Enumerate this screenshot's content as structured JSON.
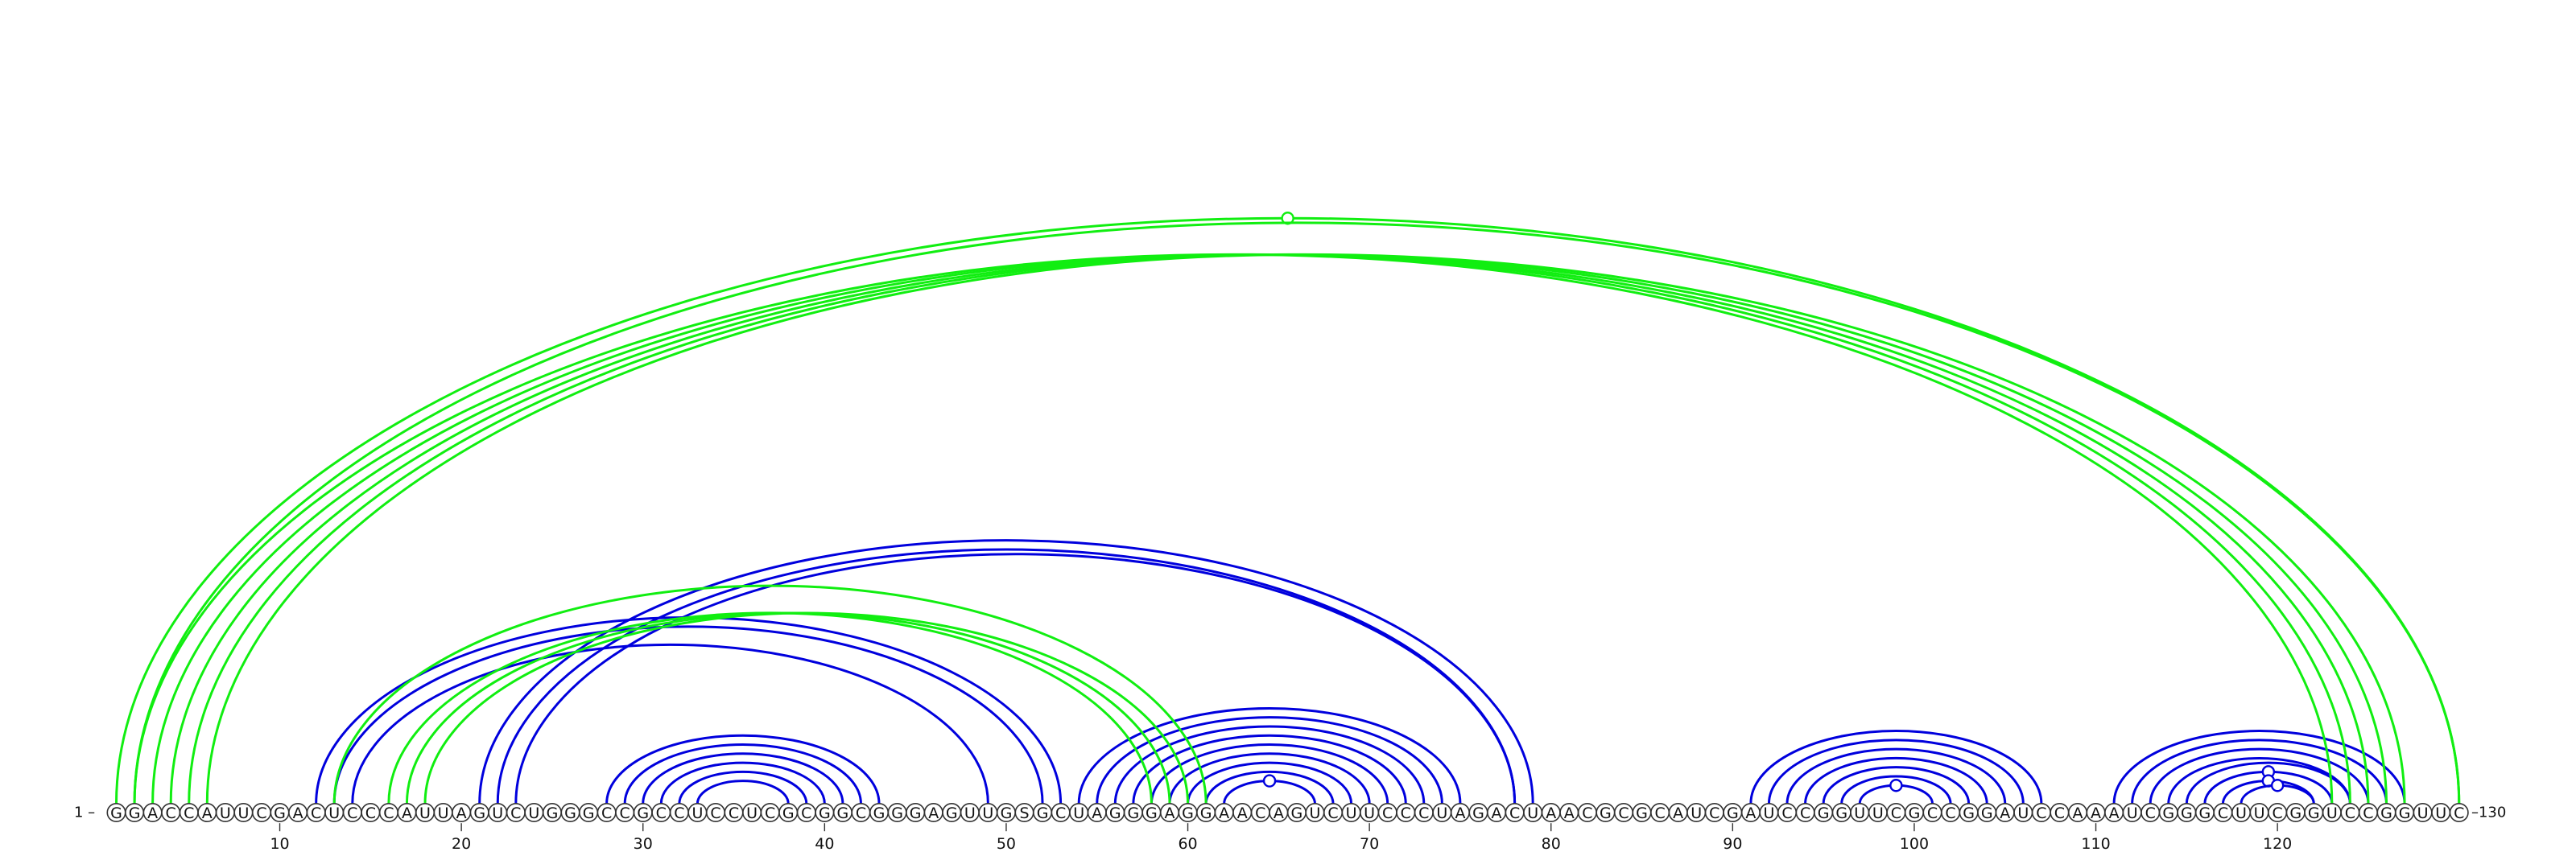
{
  "diagram": {
    "sequence": "GGACCAUUCGACUCCCAUUAGUCUGGGCCGCCUCCUCGCGGCGGGAGUUGSGCUAGGGAGGAACAGUCUUCCCUAGACUAACGCGCAUCGAUCCGGUUCGCCGGAUCCAAAUCGGGCUUCGGUCCGGUUC",
    "start_label": "1 –",
    "end_label": "–130",
    "ticks": [
      "10",
      "20",
      "30",
      "40",
      "50",
      "60",
      "70",
      "80",
      "90",
      "100",
      "110",
      "120"
    ],
    "colors": {
      "blue": "#0000dd",
      "green": "#11ee11"
    },
    "arcs": [
      {
        "i": 12,
        "j": 53,
        "color": "blue",
        "markers": []
      },
      {
        "i": 13,
        "j": 52,
        "color": "blue",
        "markers": []
      },
      {
        "i": 14,
        "j": 49,
        "color": "blue",
        "markers": []
      },
      {
        "i": 21,
        "j": 79,
        "color": "blue",
        "markers": []
      },
      {
        "i": 22,
        "j": 78,
        "color": "blue",
        "markers": []
      },
      {
        "i": 23,
        "j": 78,
        "color": "blue",
        "markers": []
      },
      {
        "i": 28,
        "j": 43,
        "color": "blue",
        "markers": []
      },
      {
        "i": 29,
        "j": 42,
        "color": "blue",
        "markers": []
      },
      {
        "i": 30,
        "j": 41,
        "color": "blue",
        "markers": []
      },
      {
        "i": 31,
        "j": 40,
        "color": "blue",
        "markers": []
      },
      {
        "i": 32,
        "j": 39,
        "color": "blue",
        "markers": []
      },
      {
        "i": 33,
        "j": 38,
        "color": "blue",
        "markers": []
      },
      {
        "i": 54,
        "j": 75,
        "color": "blue",
        "markers": []
      },
      {
        "i": 55,
        "j": 74,
        "color": "blue",
        "markers": []
      },
      {
        "i": 56,
        "j": 73,
        "color": "blue",
        "markers": []
      },
      {
        "i": 57,
        "j": 72,
        "color": "blue",
        "markers": []
      },
      {
        "i": 58,
        "j": 71,
        "color": "blue",
        "markers": []
      },
      {
        "i": 59,
        "j": 70,
        "color": "blue",
        "markers": []
      },
      {
        "i": 60,
        "j": 69,
        "color": "blue",
        "markers": []
      },
      {
        "i": 61,
        "j": 68,
        "color": "blue",
        "markers": []
      },
      {
        "i": 62,
        "j": 67,
        "color": "blue",
        "markers": [
          0.5
        ]
      },
      {
        "i": 91,
        "j": 107,
        "color": "blue",
        "markers": []
      },
      {
        "i": 92,
        "j": 106,
        "color": "blue",
        "markers": []
      },
      {
        "i": 93,
        "j": 105,
        "color": "blue",
        "markers": []
      },
      {
        "i": 94,
        "j": 104,
        "color": "blue",
        "markers": []
      },
      {
        "i": 95,
        "j": 103,
        "color": "blue",
        "markers": []
      },
      {
        "i": 96,
        "j": 102,
        "color": "blue",
        "markers": []
      },
      {
        "i": 97,
        "j": 101,
        "color": "blue",
        "markers": [
          0.5
        ]
      },
      {
        "i": 111,
        "j": 127,
        "color": "blue",
        "markers": []
      },
      {
        "i": 112,
        "j": 126,
        "color": "blue",
        "markers": []
      },
      {
        "i": 113,
        "j": 125,
        "color": "blue",
        "markers": []
      },
      {
        "i": 114,
        "j": 124,
        "color": "blue",
        "markers": []
      },
      {
        "i": 115,
        "j": 124,
        "color": "blue",
        "markers": []
      },
      {
        "i": 116,
        "j": 123,
        "color": "blue",
        "markers": [
          0.5
        ]
      },
      {
        "i": 117,
        "j": 122,
        "color": "blue",
        "markers": [
          0.5
        ]
      },
      {
        "i": 118,
        "j": 122,
        "color": "blue",
        "markers": [
          0.5
        ]
      },
      {
        "i": 2,
        "j": 123,
        "color": "green",
        "markers": []
      },
      {
        "i": 3,
        "j": 124,
        "color": "green",
        "markers": []
      },
      {
        "i": 4,
        "j": 125,
        "color": "green",
        "markers": []
      },
      {
        "i": 5,
        "j": 126,
        "color": "green",
        "markers": []
      },
      {
        "i": 6,
        "j": 127,
        "color": "green",
        "markers": []
      },
      {
        "i": 1,
        "j": 130,
        "color": "green",
        "markers": [
          0.5
        ]
      },
      {
        "i": 2,
        "j": 130,
        "color": "green",
        "markers": []
      },
      {
        "i": 16,
        "j": 58,
        "color": "green",
        "markers": []
      },
      {
        "i": 17,
        "j": 59,
        "color": "green",
        "markers": []
      },
      {
        "i": 18,
        "j": 60,
        "color": "green",
        "markers": []
      },
      {
        "i": 13,
        "j": 61,
        "color": "green",
        "markers": []
      }
    ]
  }
}
